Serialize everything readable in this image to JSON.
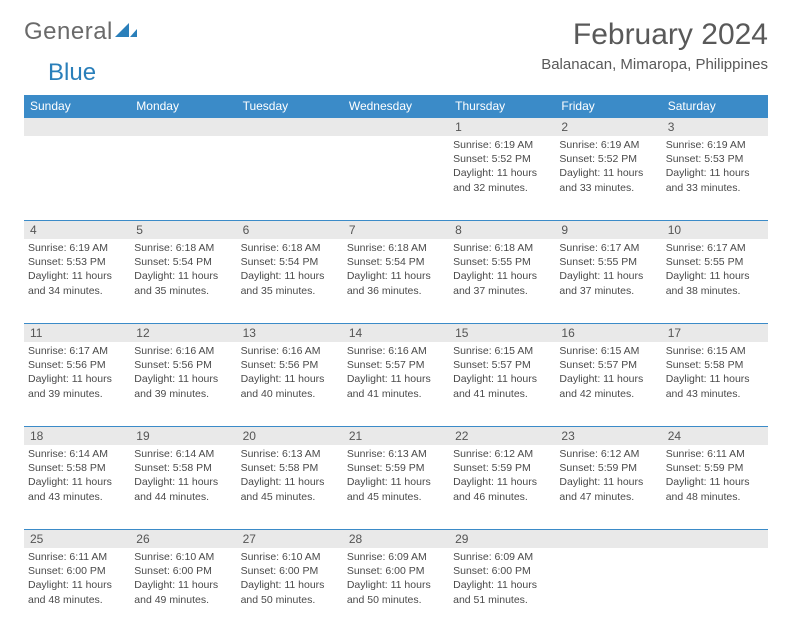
{
  "logo": {
    "text_a": "General",
    "text_b": "Blue"
  },
  "title": "February 2024",
  "location": "Balanacan, Mimaropa, Philippines",
  "colors": {
    "header_bg": "#3b8bc8",
    "header_text": "#ffffff",
    "band_bg": "#e9e9e9",
    "rule": "#3b8bc8",
    "text": "#4a4a4a",
    "title_text": "#595959"
  },
  "dow": [
    "Sunday",
    "Monday",
    "Tuesday",
    "Wednesday",
    "Thursday",
    "Friday",
    "Saturday"
  ],
  "weeks": [
    {
      "nums": [
        "",
        "",
        "",
        "",
        "1",
        "2",
        "3"
      ],
      "cells": [
        null,
        null,
        null,
        null,
        {
          "sunrise": "Sunrise: 6:19 AM",
          "sunset": "Sunset: 5:52 PM",
          "dl1": "Daylight: 11 hours",
          "dl2": "and 32 minutes."
        },
        {
          "sunrise": "Sunrise: 6:19 AM",
          "sunset": "Sunset: 5:52 PM",
          "dl1": "Daylight: 11 hours",
          "dl2": "and 33 minutes."
        },
        {
          "sunrise": "Sunrise: 6:19 AM",
          "sunset": "Sunset: 5:53 PM",
          "dl1": "Daylight: 11 hours",
          "dl2": "and 33 minutes."
        }
      ]
    },
    {
      "nums": [
        "4",
        "5",
        "6",
        "7",
        "8",
        "9",
        "10"
      ],
      "cells": [
        {
          "sunrise": "Sunrise: 6:19 AM",
          "sunset": "Sunset: 5:53 PM",
          "dl1": "Daylight: 11 hours",
          "dl2": "and 34 minutes."
        },
        {
          "sunrise": "Sunrise: 6:18 AM",
          "sunset": "Sunset: 5:54 PM",
          "dl1": "Daylight: 11 hours",
          "dl2": "and 35 minutes."
        },
        {
          "sunrise": "Sunrise: 6:18 AM",
          "sunset": "Sunset: 5:54 PM",
          "dl1": "Daylight: 11 hours",
          "dl2": "and 35 minutes."
        },
        {
          "sunrise": "Sunrise: 6:18 AM",
          "sunset": "Sunset: 5:54 PM",
          "dl1": "Daylight: 11 hours",
          "dl2": "and 36 minutes."
        },
        {
          "sunrise": "Sunrise: 6:18 AM",
          "sunset": "Sunset: 5:55 PM",
          "dl1": "Daylight: 11 hours",
          "dl2": "and 37 minutes."
        },
        {
          "sunrise": "Sunrise: 6:17 AM",
          "sunset": "Sunset: 5:55 PM",
          "dl1": "Daylight: 11 hours",
          "dl2": "and 37 minutes."
        },
        {
          "sunrise": "Sunrise: 6:17 AM",
          "sunset": "Sunset: 5:55 PM",
          "dl1": "Daylight: 11 hours",
          "dl2": "and 38 minutes."
        }
      ]
    },
    {
      "nums": [
        "11",
        "12",
        "13",
        "14",
        "15",
        "16",
        "17"
      ],
      "cells": [
        {
          "sunrise": "Sunrise: 6:17 AM",
          "sunset": "Sunset: 5:56 PM",
          "dl1": "Daylight: 11 hours",
          "dl2": "and 39 minutes."
        },
        {
          "sunrise": "Sunrise: 6:16 AM",
          "sunset": "Sunset: 5:56 PM",
          "dl1": "Daylight: 11 hours",
          "dl2": "and 39 minutes."
        },
        {
          "sunrise": "Sunrise: 6:16 AM",
          "sunset": "Sunset: 5:56 PM",
          "dl1": "Daylight: 11 hours",
          "dl2": "and 40 minutes."
        },
        {
          "sunrise": "Sunrise: 6:16 AM",
          "sunset": "Sunset: 5:57 PM",
          "dl1": "Daylight: 11 hours",
          "dl2": "and 41 minutes."
        },
        {
          "sunrise": "Sunrise: 6:15 AM",
          "sunset": "Sunset: 5:57 PM",
          "dl1": "Daylight: 11 hours",
          "dl2": "and 41 minutes."
        },
        {
          "sunrise": "Sunrise: 6:15 AM",
          "sunset": "Sunset: 5:57 PM",
          "dl1": "Daylight: 11 hours",
          "dl2": "and 42 minutes."
        },
        {
          "sunrise": "Sunrise: 6:15 AM",
          "sunset": "Sunset: 5:58 PM",
          "dl1": "Daylight: 11 hours",
          "dl2": "and 43 minutes."
        }
      ]
    },
    {
      "nums": [
        "18",
        "19",
        "20",
        "21",
        "22",
        "23",
        "24"
      ],
      "cells": [
        {
          "sunrise": "Sunrise: 6:14 AM",
          "sunset": "Sunset: 5:58 PM",
          "dl1": "Daylight: 11 hours",
          "dl2": "and 43 minutes."
        },
        {
          "sunrise": "Sunrise: 6:14 AM",
          "sunset": "Sunset: 5:58 PM",
          "dl1": "Daylight: 11 hours",
          "dl2": "and 44 minutes."
        },
        {
          "sunrise": "Sunrise: 6:13 AM",
          "sunset": "Sunset: 5:58 PM",
          "dl1": "Daylight: 11 hours",
          "dl2": "and 45 minutes."
        },
        {
          "sunrise": "Sunrise: 6:13 AM",
          "sunset": "Sunset: 5:59 PM",
          "dl1": "Daylight: 11 hours",
          "dl2": "and 45 minutes."
        },
        {
          "sunrise": "Sunrise: 6:12 AM",
          "sunset": "Sunset: 5:59 PM",
          "dl1": "Daylight: 11 hours",
          "dl2": "and 46 minutes."
        },
        {
          "sunrise": "Sunrise: 6:12 AM",
          "sunset": "Sunset: 5:59 PM",
          "dl1": "Daylight: 11 hours",
          "dl2": "and 47 minutes."
        },
        {
          "sunrise": "Sunrise: 6:11 AM",
          "sunset": "Sunset: 5:59 PM",
          "dl1": "Daylight: 11 hours",
          "dl2": "and 48 minutes."
        }
      ]
    },
    {
      "nums": [
        "25",
        "26",
        "27",
        "28",
        "29",
        "",
        ""
      ],
      "cells": [
        {
          "sunrise": "Sunrise: 6:11 AM",
          "sunset": "Sunset: 6:00 PM",
          "dl1": "Daylight: 11 hours",
          "dl2": "and 48 minutes."
        },
        {
          "sunrise": "Sunrise: 6:10 AM",
          "sunset": "Sunset: 6:00 PM",
          "dl1": "Daylight: 11 hours",
          "dl2": "and 49 minutes."
        },
        {
          "sunrise": "Sunrise: 6:10 AM",
          "sunset": "Sunset: 6:00 PM",
          "dl1": "Daylight: 11 hours",
          "dl2": "and 50 minutes."
        },
        {
          "sunrise": "Sunrise: 6:09 AM",
          "sunset": "Sunset: 6:00 PM",
          "dl1": "Daylight: 11 hours",
          "dl2": "and 50 minutes."
        },
        {
          "sunrise": "Sunrise: 6:09 AM",
          "sunset": "Sunset: 6:00 PM",
          "dl1": "Daylight: 11 hours",
          "dl2": "and 51 minutes."
        },
        null,
        null
      ]
    }
  ]
}
